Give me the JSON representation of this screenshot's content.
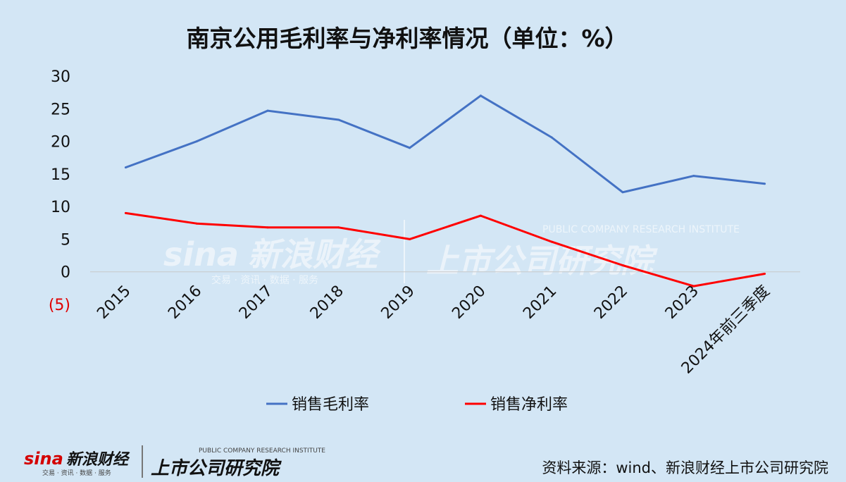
{
  "chart_data": {
    "type": "line",
    "title": "南京公用毛利率与净利率情况（单位：%）",
    "categories": [
      "2015",
      "2016",
      "2017",
      "2018",
      "2019",
      "2020",
      "2021",
      "2022",
      "2023",
      "2024年前三季度"
    ],
    "series": [
      {
        "name": "销售毛利率",
        "color": "#4472c4",
        "values": [
          16.0,
          20.0,
          24.7,
          23.3,
          19.0,
          27.0,
          20.6,
          12.2,
          14.7,
          13.5
        ]
      },
      {
        "name": "销售净利率",
        "color": "#ff0000",
        "values": [
          9.0,
          7.4,
          6.8,
          6.8,
          5.0,
          8.6,
          4.6,
          1.0,
          -2.2,
          -0.3
        ]
      }
    ],
    "ylim": [
      -5,
      30
    ],
    "yticks": [
      {
        "value": 30,
        "label": "30"
      },
      {
        "value": 25,
        "label": "25"
      },
      {
        "value": 20,
        "label": "20"
      },
      {
        "value": 15,
        "label": "15"
      },
      {
        "value": 10,
        "label": "10"
      },
      {
        "value": 5,
        "label": "5"
      },
      {
        "value": 0,
        "label": "0"
      },
      {
        "value": -5,
        "label": "(5)"
      }
    ],
    "negative_tick_color": "#e00000",
    "grid": false,
    "legend_position": "bottom"
  },
  "source_note": "资料来源：wind、新浪财经上市公司研究院",
  "watermark": {
    "sina_logo": "sina",
    "sina_name": "新浪财经",
    "sina_tagline": "交易 · 资讯 · 数据 · 服务",
    "institute_name": "上市公司研究院",
    "institute_en": "PUBLIC COMPANY RESEARCH INSTITUTE"
  }
}
